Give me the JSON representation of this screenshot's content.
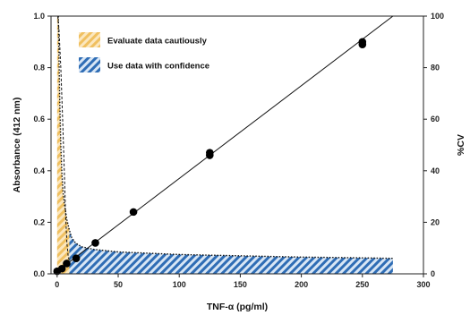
{
  "chart_data": {
    "type": "line",
    "xlabel": "TNF-α (pg/ml)",
    "ylabel": "Absorbance (412 nm)",
    "y2label": "%CV",
    "xlim": [
      -5,
      300
    ],
    "ylim": [
      0,
      1.0
    ],
    "y2lim": [
      0,
      100
    ],
    "x_ticks": [
      0,
      50,
      100,
      150,
      200,
      250,
      300
    ],
    "y_ticks": [
      0,
      0.2,
      0.4,
      0.6,
      0.8,
      1.0
    ],
    "y_tick_labels": [
      "0.0",
      "0.2",
      "0.4",
      "0.6",
      "0.8",
      "1.0"
    ],
    "y2_ticks": [
      0,
      20,
      40,
      60,
      80,
      100
    ],
    "grid": false,
    "legend_position": "top-left",
    "legend": [
      {
        "label": "Evaluate data cautiously",
        "color": "#f0c060"
      },
      {
        "label": "Use data with confidence",
        "color": "#2f6db5"
      }
    ],
    "absorbance_points": [
      {
        "x": 0,
        "y": 0.01
      },
      {
        "x": 3.9,
        "y": 0.02
      },
      {
        "x": 7.8,
        "y": 0.04
      },
      {
        "x": 15.6,
        "y": 0.06
      },
      {
        "x": 31.3,
        "y": 0.12
      },
      {
        "x": 62.5,
        "y": 0.24
      },
      {
        "x": 125,
        "y": 0.46
      },
      {
        "x": 125,
        "y": 0.47
      },
      {
        "x": 250,
        "y": 0.89
      },
      {
        "x": 250,
        "y": 0.9
      }
    ],
    "fit_line": {
      "slope": 0.0036,
      "intercept": 0.01
    },
    "cv_curve": [
      {
        "x": 1,
        "cv": 100
      },
      {
        "x": 2,
        "cv": 70
      },
      {
        "x": 3,
        "cv": 50
      },
      {
        "x": 4,
        "cv": 38
      },
      {
        "x": 5,
        "cv": 31
      },
      {
        "x": 6,
        "cv": 27
      },
      {
        "x": 8,
        "cv": 21
      },
      {
        "x": 10,
        "cv": 17
      },
      {
        "x": 12,
        "cv": 14
      },
      {
        "x": 15,
        "cv": 12
      },
      {
        "x": 20,
        "cv": 10.5
      },
      {
        "x": 30,
        "cv": 9.5
      },
      {
        "x": 50,
        "cv": 8.5
      },
      {
        "x": 75,
        "cv": 8
      },
      {
        "x": 100,
        "cv": 7.5
      },
      {
        "x": 150,
        "cv": 7
      },
      {
        "x": 200,
        "cv": 6.5
      },
      {
        "x": 250,
        "cv": 6.2
      },
      {
        "x": 275,
        "cv": 6
      }
    ],
    "caution_range": [
      0,
      10
    ],
    "confidence_range": [
      10,
      275
    ],
    "cv_dashed_curve": [
      {
        "x": 0.5,
        "cv": 100
      },
      {
        "x": 1.5,
        "cv": 95
      },
      {
        "x": 3,
        "cv": 80
      },
      {
        "x": 4.5,
        "cv": 60
      },
      {
        "x": 6,
        "cv": 38
      },
      {
        "x": 7,
        "cv": 22
      },
      {
        "x": 8,
        "cv": 12
      },
      {
        "x": 9,
        "cv": 7
      },
      {
        "x": 10,
        "cv": 5
      }
    ]
  }
}
